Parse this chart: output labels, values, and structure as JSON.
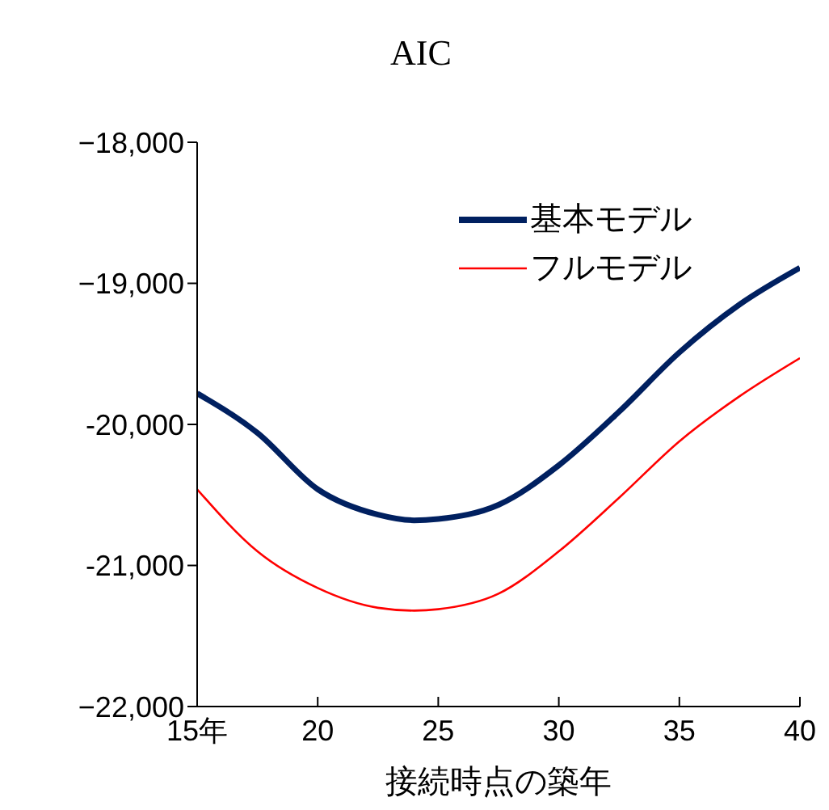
{
  "chart_data": {
    "type": "line",
    "title": "AIC",
    "xlabel": "接続時点の築年",
    "x": [
      15,
      17.5,
      20,
      22.5,
      24,
      25,
      27.5,
      30,
      32.5,
      35,
      37.5,
      40
    ],
    "series": [
      {
        "name": "基本モデル",
        "color": "#002060",
        "values": [
          -19780,
          -20060,
          -20460,
          -20640,
          -20680,
          -20670,
          -20570,
          -20290,
          -19910,
          -19490,
          -19150,
          -18890
        ]
      },
      {
        "name": "フルモデル",
        "color": "#ff0000",
        "values": [
          -20460,
          -20900,
          -21160,
          -21300,
          -21320,
          -21310,
          -21200,
          -20900,
          -20520,
          -20120,
          -19800,
          -19530
        ]
      }
    ],
    "xlim": [
      15,
      40
    ],
    "xticks": [
      {
        "value": 15,
        "label": "15年"
      },
      20,
      25,
      30,
      35,
      40
    ],
    "ylim": [
      -22000,
      -18000
    ],
    "yticks": [
      {
        "value": -22000,
        "label": "−22,000"
      },
      {
        "value": -21000,
        "label": "-21,000"
      },
      {
        "value": -20000,
        "label": "-20,000"
      },
      {
        "value": -19000,
        "label": "−19,000"
      },
      {
        "value": -18000,
        "label": "−18,000"
      }
    ],
    "grid": false,
    "legend": "top right",
    "marker": "none",
    "line_style": "solid"
  }
}
